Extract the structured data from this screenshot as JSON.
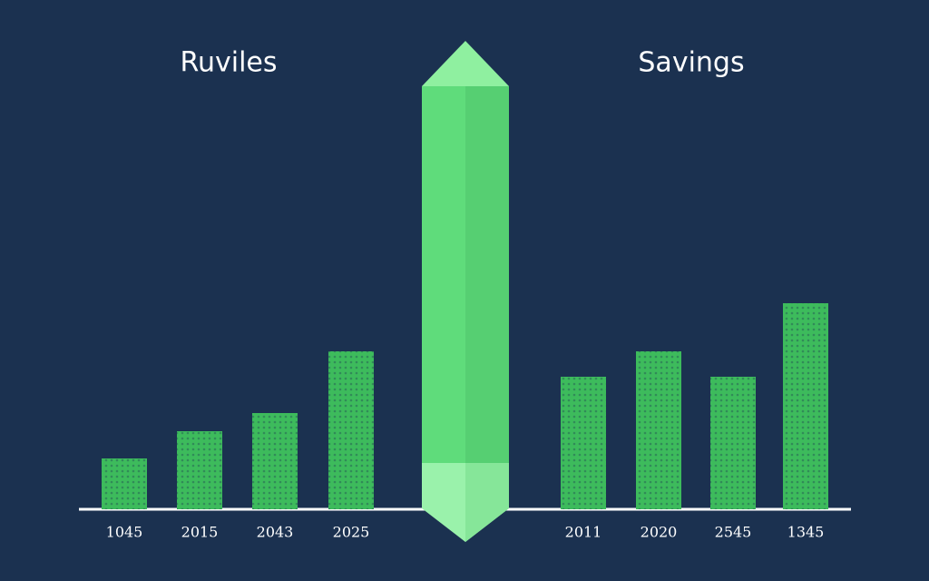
{
  "chart_data": [
    {
      "type": "bar",
      "title": "Ruviles",
      "categories": [
        "1045",
        "2015",
        "2043",
        "2025"
      ],
      "values": [
        56,
        86,
        106,
        174
      ],
      "color": "#3dbb5c",
      "ylim": [
        0,
        230
      ]
    },
    {
      "type": "bar",
      "title": "Savings",
      "categories": [
        "2011",
        "2020",
        "2545",
        "1345"
      ],
      "values": [
        146,
        174,
        146,
        227
      ],
      "color": "#3dbb5c",
      "ylim": [
        0,
        230
      ]
    }
  ]
}
